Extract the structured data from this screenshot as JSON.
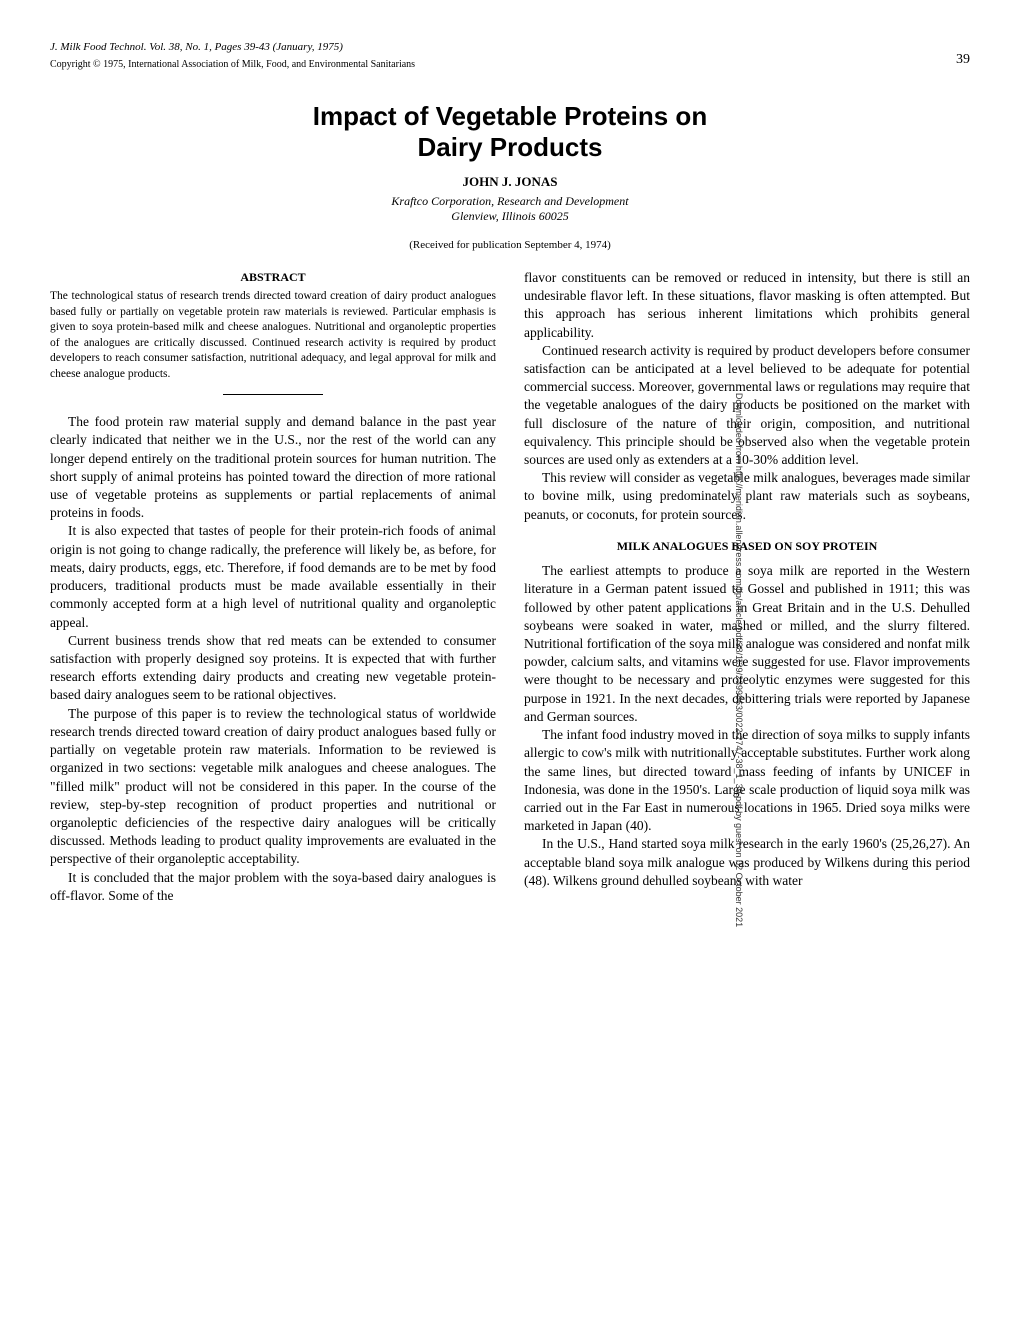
{
  "page_number": "39",
  "citation_prefix": "J. Milk Food Technol. Vol. 38, No. 1, Pages 39-43 (January, 1975)",
  "copyright": "Copyright © 1975, International Association of Milk, Food, and Environmental Sanitarians",
  "title_line1": "Impact of Vegetable Proteins on",
  "title_line2": "Dairy Products",
  "author": "JOHN J. JONAS",
  "affiliation_line1": "Kraftco Corporation, Research and Development",
  "affiliation_line2": "Glenview, Illinois 60025",
  "received": "(Received for publication September 4, 1974)",
  "abstract_heading": "ABSTRACT",
  "abstract_text": "The technological status of research trends directed toward creation of dairy product analogues based fully or partially on vegetable protein raw materials is reviewed. Particular emphasis is given to soya protein-based milk and cheese analogues. Nutritional and organoleptic properties of the analogues are critically discussed. Continued research activity is required by product developers to reach consumer satisfaction, nutritional adequacy, and legal approval for milk and cheese analogue products.",
  "left_col": {
    "p1": "The food protein raw material supply and demand balance in the past year clearly indicated that neither we in the U.S., nor the rest of the world can any longer depend entirely on the traditional protein sources for human nutrition. The short supply of animal proteins has pointed toward the direction of more rational use of vegetable proteins as supplements or partial replacements of animal proteins in foods.",
    "p2": "It is also expected that tastes of people for their protein-rich foods of animal origin is not going to change radically, the preference will likely be, as before, for meats, dairy products, eggs, etc. Therefore, if food demands are to be met by food producers, traditional products must be made available essentially in their commonly accepted form at a high level of nutritional quality and organoleptic appeal.",
    "p3": "Current business trends show that red meats can be extended to consumer satisfaction with properly designed soy proteins. It is expected that with further research efforts extending dairy products and creating new vegetable protein-based dairy analogues seem to be rational objectives.",
    "p4": "The purpose of this paper is to review the technological status of worldwide research trends directed toward creation of dairy product analogues based fully or partially on vegetable protein raw materials. Information to be reviewed is organized in two sections: vegetable milk analogues and cheese analogues. The \"filled milk\" product will not be considered in this paper. In the course of the review, step-by-step recognition of product properties and nutritional or organoleptic deficiencies of the respective dairy analogues will be critically discussed. Methods leading to product quality improvements are evaluated in the perspective of their organoleptic acceptability.",
    "p5": "It is concluded that the major problem with the soya-based dairy analogues is off-flavor. Some of the"
  },
  "right_col": {
    "p1": "flavor constituents can be removed or reduced in intensity, but there is still an undesirable flavor left. In these situations, flavor masking is often attempted. But this approach has serious inherent limitations which prohibits general applicability.",
    "p2": "Continued research activity is required by product developers before consumer satisfaction can be anticipated at a level believed to be adequate for potential commercial success. Moreover, governmental laws or regulations may require that the vegetable analogues of the dairy products be positioned on the market with full disclosure of the nature of their origin, composition, and nutritional equivalency. This principle should be observed also when the vegetable protein sources are used only as extenders at a 10-30% addition level.",
    "p3": "This review will consider as vegetable milk analogues, beverages made similar to bovine milk, using predominately plant raw materials such as soybeans, peanuts, or coconuts, for protein sources.",
    "section_heading": "MILK ANALOGUES BASED ON SOY PROTEIN",
    "p4": "The earliest attempts to produce a soya milk are reported in the Western literature in a German patent issued to Gossel and published in 1911; this was followed by other patent applications in Great Britain and in the U.S. Dehulled soybeans were soaked in water, mashed or milled, and the slurry filtered. Nutritional fortification of the soya milk analogue was considered and nonfat milk powder, calcium salts, and vitamins were suggested for use. Flavor improvements were thought to be necessary and proteolytic enzymes were suggested for this purpose in 1921. In the next decades, debittering trials were reported by Japanese and German sources.",
    "p5": "The infant food industry moved in the direction of soya milks to supply infants allergic to cow's milk with nutritionally acceptable substitutes. Further work along the same lines, but directed toward mass feeding of infants by UNICEF in Indonesia, was done in the 1950's. Large scale production of liquid soya milk was carried out in the Far East in numerous locations in 1965. Dried soya milks were marketed in Japan (40).",
    "p6": "In the U.S., Hand started soya milk research in the early 1960's (25,26,27). An acceptable bland soya milk analogue was produced by Wilkens during this period (48). Wilkens ground dehulled soybeans with water"
  },
  "side_text": "Downloaded from http://meridian.allenpress.com/jfp/article-pdf/38/1/39/2399863/0022-2747-38_1_39.pdf by guest on 02 October 2021",
  "colors": {
    "background": "#ffffff",
    "text": "#000000"
  },
  "typography": {
    "body_font": "Times New Roman",
    "title_font": "Arial",
    "body_fontsize": 13.5,
    "title_fontsize": 26,
    "abstract_fontsize": 11.5
  }
}
